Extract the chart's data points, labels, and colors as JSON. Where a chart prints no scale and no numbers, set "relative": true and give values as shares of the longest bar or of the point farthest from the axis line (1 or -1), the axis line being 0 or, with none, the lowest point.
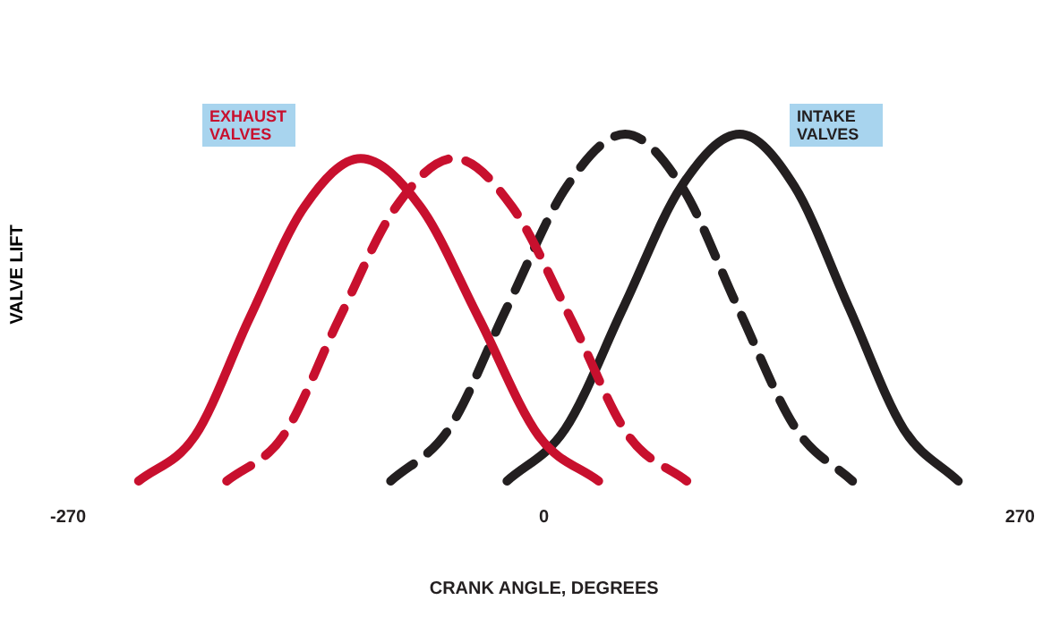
{
  "chart_data": {
    "type": "line",
    "relative": true,
    "xlabel": "CRANK ANGLE, DEGREES",
    "ylabel": "VALVE LIFT",
    "xlim": [
      -270,
      270
    ],
    "xticks": [
      -270,
      0,
      270
    ],
    "grid": false,
    "legend": false,
    "marker": "none",
    "annotations": [
      "EXHAUST VALVES",
      "INTAKE VALVES"
    ],
    "series": [
      {
        "color": "#c8102e",
        "line_style": "solid",
        "x": [
          -230,
          -198,
          -167,
          -136,
          -104,
          -70,
          -37,
          -3,
          31
        ],
        "values": [
          0,
          0.13,
          0.47,
          0.79,
          0.93,
          0.79,
          0.47,
          0.13,
          0
        ]
      },
      {
        "color": "#c8102e",
        "line_style": "dashed",
        "x": [
          -180,
          -148,
          -116,
          -84,
          -51,
          -18,
          15,
          48,
          81
        ],
        "values": [
          0,
          0.13,
          0.47,
          0.79,
          0.93,
          0.79,
          0.47,
          0.13,
          0
        ]
      },
      {
        "color": "#231f20",
        "line_style": "dashed",
        "x": [
          -87,
          -54,
          -21,
          13,
          46,
          78,
          110,
          143,
          175
        ],
        "values": [
          0,
          0.15,
          0.5,
          0.85,
          1,
          0.85,
          0.5,
          0.15,
          0
        ]
      },
      {
        "color": "#231f20",
        "line_style": "solid",
        "x": [
          -21,
          12,
          45,
          78,
          111,
          142,
          173,
          204,
          235
        ],
        "values": [
          0,
          0.15,
          0.5,
          0.85,
          1,
          0.85,
          0.5,
          0.15,
          0
        ]
      }
    ]
  }
}
